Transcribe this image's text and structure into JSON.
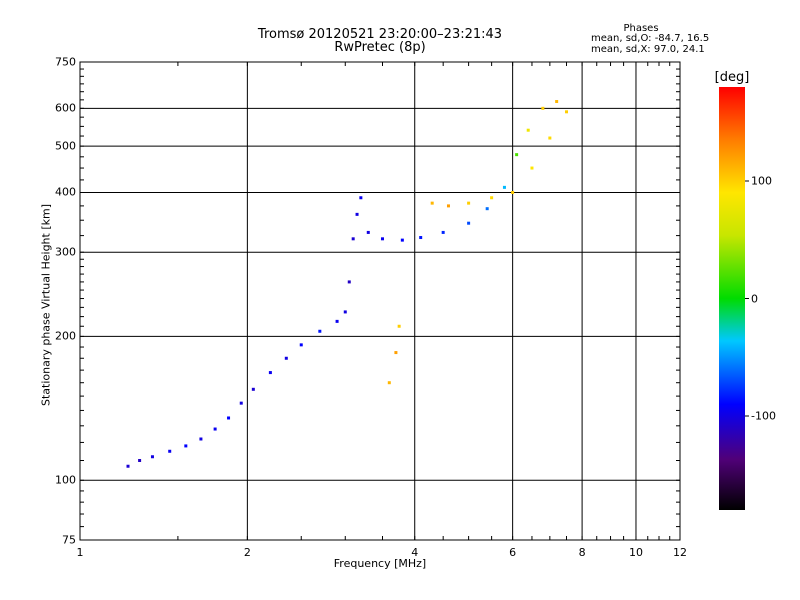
{
  "chart_data": {
    "type": "scatter",
    "title": "Tromsø 20120521 23:20:00–23:21:43",
    "subtitle": "RwPretec (8p)",
    "xlabel": "Frequency [MHz]",
    "ylabel": "Stationary phase Virtual Height [km]",
    "x_scale": "log",
    "y_scale": "log",
    "xlim": [
      1,
      12
    ],
    "ylim": [
      75,
      750
    ],
    "x_ticks": [
      "1",
      "2",
      "4",
      "6",
      "8",
      "10",
      "12"
    ],
    "x_grid": [
      2,
      4,
      6,
      8,
      10
    ],
    "y_ticks": [
      "75",
      "100",
      "200",
      "300",
      "400",
      "500",
      "600",
      "750"
    ],
    "y_grid": [
      100,
      200,
      300,
      400,
      500,
      600
    ],
    "grid": true,
    "phase_stats": {
      "heading": "Phases",
      "o_line": "mean, sd,O: -84.7, 16.5",
      "x_line": "mean, sd,X:  97.0, 24.1"
    },
    "colorbar": {
      "label": "[deg]",
      "range": [
        -180,
        180
      ],
      "ticks": [
        "100",
        "0",
        "-100"
      ],
      "tick_values": [
        100,
        0,
        -100
      ]
    },
    "series": [
      {
        "description": "O-mode E/F1 trace (blue, phase ≈ -100°)",
        "points": [
          [
            1.22,
            107,
            -105
          ],
          [
            1.28,
            110,
            -110
          ],
          [
            1.35,
            112,
            -100
          ],
          [
            1.45,
            115,
            -95
          ],
          [
            1.55,
            118,
            -90
          ],
          [
            1.65,
            122,
            -100
          ],
          [
            1.75,
            128,
            -95
          ],
          [
            1.85,
            135,
            -90
          ],
          [
            1.95,
            145,
            -100
          ],
          [
            2.05,
            155,
            -105
          ],
          [
            2.2,
            168,
            -95
          ],
          [
            2.35,
            180,
            -100
          ],
          [
            2.5,
            192,
            -90
          ],
          [
            2.7,
            205,
            -85
          ],
          [
            2.9,
            215,
            -95
          ],
          [
            3.0,
            225,
            -100
          ],
          [
            3.05,
            260,
            -110
          ],
          [
            3.1,
            320,
            -105
          ],
          [
            3.15,
            360,
            -100
          ],
          [
            3.2,
            390,
            -95
          ]
        ]
      },
      {
        "description": "F2 trace (blue to yellow)",
        "points": [
          [
            3.3,
            330,
            -100
          ],
          [
            3.5,
            320,
            -95
          ],
          [
            3.8,
            318,
            -90
          ],
          [
            4.1,
            322,
            -85
          ],
          [
            4.5,
            330,
            -80
          ],
          [
            5.0,
            345,
            -70
          ],
          [
            5.4,
            370,
            -60
          ],
          [
            5.8,
            410,
            -40
          ],
          [
            6.1,
            480,
            20
          ],
          [
            6.4,
            540,
            80
          ],
          [
            6.8,
            600,
            100
          ],
          [
            7.2,
            620,
            110
          ]
        ]
      },
      {
        "description": "X-mode trace (yellow/orange, phase ≈ 100°)",
        "points": [
          [
            4.3,
            380,
            110
          ],
          [
            4.6,
            375,
            120
          ],
          [
            5.0,
            380,
            100
          ],
          [
            5.5,
            390,
            95
          ],
          [
            6.0,
            400,
            100
          ],
          [
            6.5,
            450,
            90
          ],
          [
            7.0,
            520,
            95
          ],
          [
            7.5,
            590,
            100
          ],
          [
            3.6,
            160,
            110
          ],
          [
            3.7,
            185,
            120
          ],
          [
            3.75,
            210,
            100
          ]
        ]
      }
    ]
  }
}
